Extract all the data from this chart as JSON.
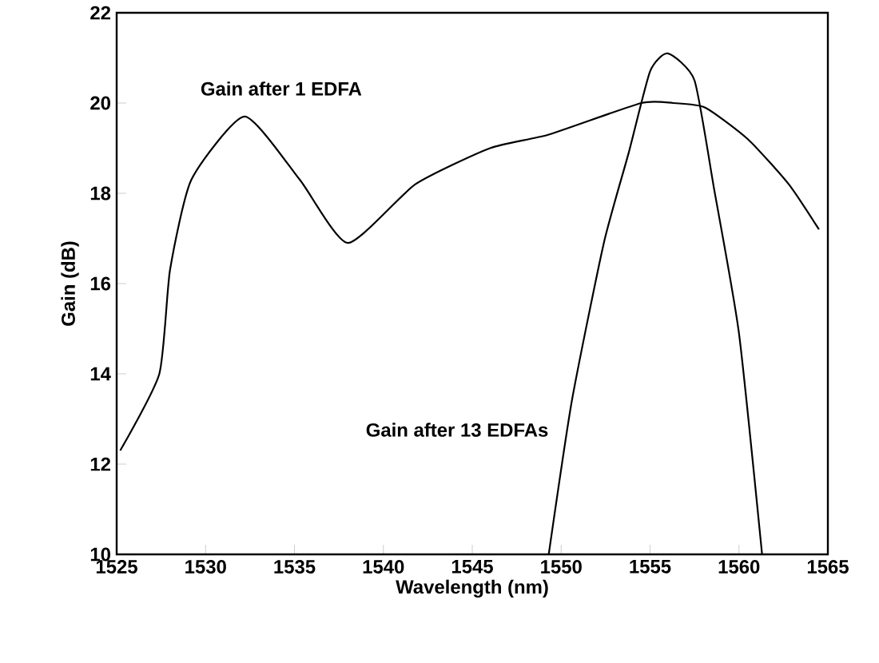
{
  "chart_data": {
    "type": "line",
    "xlabel": "Wavelength (nm)",
    "ylabel": "Gain (dB)",
    "xlim": [
      1525,
      1565
    ],
    "xticks": [
      1525,
      1530,
      1535,
      1540,
      1545,
      1550,
      1555,
      1560,
      1565
    ],
    "ylim": [
      10,
      22
    ],
    "yticks": [
      10,
      12,
      14,
      16,
      18,
      20,
      22
    ],
    "series": [
      {
        "name": "Gain after 1 EDFA",
        "color": "#000000",
        "x": [
          1525.2,
          1527.4,
          1528.0,
          1529.2,
          1532.2,
          1535.3,
          1538.0,
          1541.8,
          1546.0,
          1549.3,
          1554.5,
          1556.3,
          1558.1,
          1560.5,
          1562.8,
          1564.5
        ],
        "values": [
          12.3,
          14.0,
          16.3,
          18.3,
          19.7,
          18.3,
          16.9,
          18.2,
          19.0,
          19.3,
          20.0,
          20.0,
          19.9,
          19.2,
          18.2,
          17.2
        ]
      },
      {
        "name": "Gain after 13 EDFAs",
        "color": "#000000",
        "x": [
          1549.3,
          1550.6,
          1552.4,
          1553.8,
          1555.0,
          1556.0,
          1557.5,
          1558.6,
          1560.0,
          1561.3
        ],
        "values": [
          10,
          13.4,
          16.9,
          18.9,
          20.7,
          21.1,
          20.5,
          18.1,
          14.9,
          10
        ]
      }
    ]
  }
}
